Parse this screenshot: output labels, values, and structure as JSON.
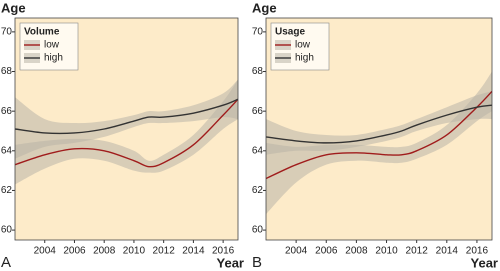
{
  "chart_data": [
    {
      "type": "line",
      "panel_label": "A",
      "y_label": "Age",
      "x_label": "Year",
      "legend_title": "Volume",
      "x": [
        2002,
        2004,
        2006,
        2008,
        2010,
        2011,
        2012,
        2014,
        2016,
        2017
      ],
      "series": [
        {
          "name": "low",
          "color": "#a01c1c",
          "band_color": "#b9b4a8",
          "values": [
            63.3,
            63.8,
            64.1,
            64.0,
            63.5,
            63.2,
            63.4,
            64.3,
            65.8,
            66.6
          ],
          "lower": [
            62.3,
            63.1,
            63.6,
            63.5,
            63.0,
            62.9,
            63.0,
            63.8,
            65.1,
            65.6
          ],
          "upper": [
            64.3,
            64.5,
            64.6,
            64.5,
            64.0,
            63.5,
            63.8,
            64.8,
            66.5,
            67.6
          ]
        },
        {
          "name": "high",
          "color": "#333333",
          "band_color": "#b9b4a8",
          "values": [
            65.1,
            64.9,
            64.9,
            65.1,
            65.5,
            65.7,
            65.7,
            65.9,
            66.3,
            66.6
          ],
          "lower": [
            63.6,
            64.2,
            64.4,
            64.7,
            65.2,
            65.4,
            65.4,
            65.5,
            65.7,
            65.6
          ],
          "upper": [
            66.7,
            65.6,
            65.4,
            65.5,
            65.8,
            66.0,
            66.0,
            66.3,
            66.9,
            67.6
          ]
        }
      ],
      "xlim": [
        2002,
        2017
      ],
      "ylim": [
        59.5,
        70.7
      ],
      "xticks": [
        2004,
        2006,
        2008,
        2010,
        2012,
        2014,
        2016
      ],
      "yticks": [
        60,
        62,
        64,
        66,
        68,
        70
      ],
      "background": "#fdebc9"
    },
    {
      "type": "line",
      "panel_label": "B",
      "y_label": "Age",
      "x_label": "Year",
      "legend_title": "Usage",
      "x": [
        2002,
        2004,
        2006,
        2008,
        2010,
        2011,
        2012,
        2014,
        2016,
        2017
      ],
      "series": [
        {
          "name": "low",
          "color": "#a01c1c",
          "band_color": "#b9b4a8",
          "values": [
            62.6,
            63.3,
            63.8,
            63.9,
            63.8,
            63.8,
            64.0,
            64.8,
            66.2,
            67.0
          ],
          "lower": [
            60.8,
            62.4,
            63.3,
            63.5,
            63.4,
            63.4,
            63.6,
            64.3,
            65.5,
            66.0
          ],
          "upper": [
            64.4,
            64.2,
            64.3,
            64.3,
            64.2,
            64.2,
            64.4,
            65.3,
            66.9,
            68.0
          ]
        },
        {
          "name": "high",
          "color": "#333333",
          "band_color": "#b9b4a8",
          "values": [
            64.7,
            64.5,
            64.4,
            64.5,
            64.8,
            65.0,
            65.3,
            65.8,
            66.2,
            66.3
          ],
          "lower": [
            63.8,
            64.0,
            64.0,
            64.2,
            64.5,
            64.7,
            65.0,
            65.4,
            65.6,
            65.6
          ],
          "upper": [
            65.6,
            65.0,
            64.8,
            64.8,
            65.1,
            65.3,
            65.6,
            66.2,
            66.8,
            67.0
          ]
        }
      ],
      "xlim": [
        2002,
        2017
      ],
      "ylim": [
        59.5,
        70.7
      ],
      "xticks": [
        2004,
        2006,
        2008,
        2010,
        2012,
        2014,
        2016
      ],
      "yticks": [
        60,
        62,
        64,
        66,
        68,
        70
      ],
      "background": "#fdebc9"
    }
  ]
}
